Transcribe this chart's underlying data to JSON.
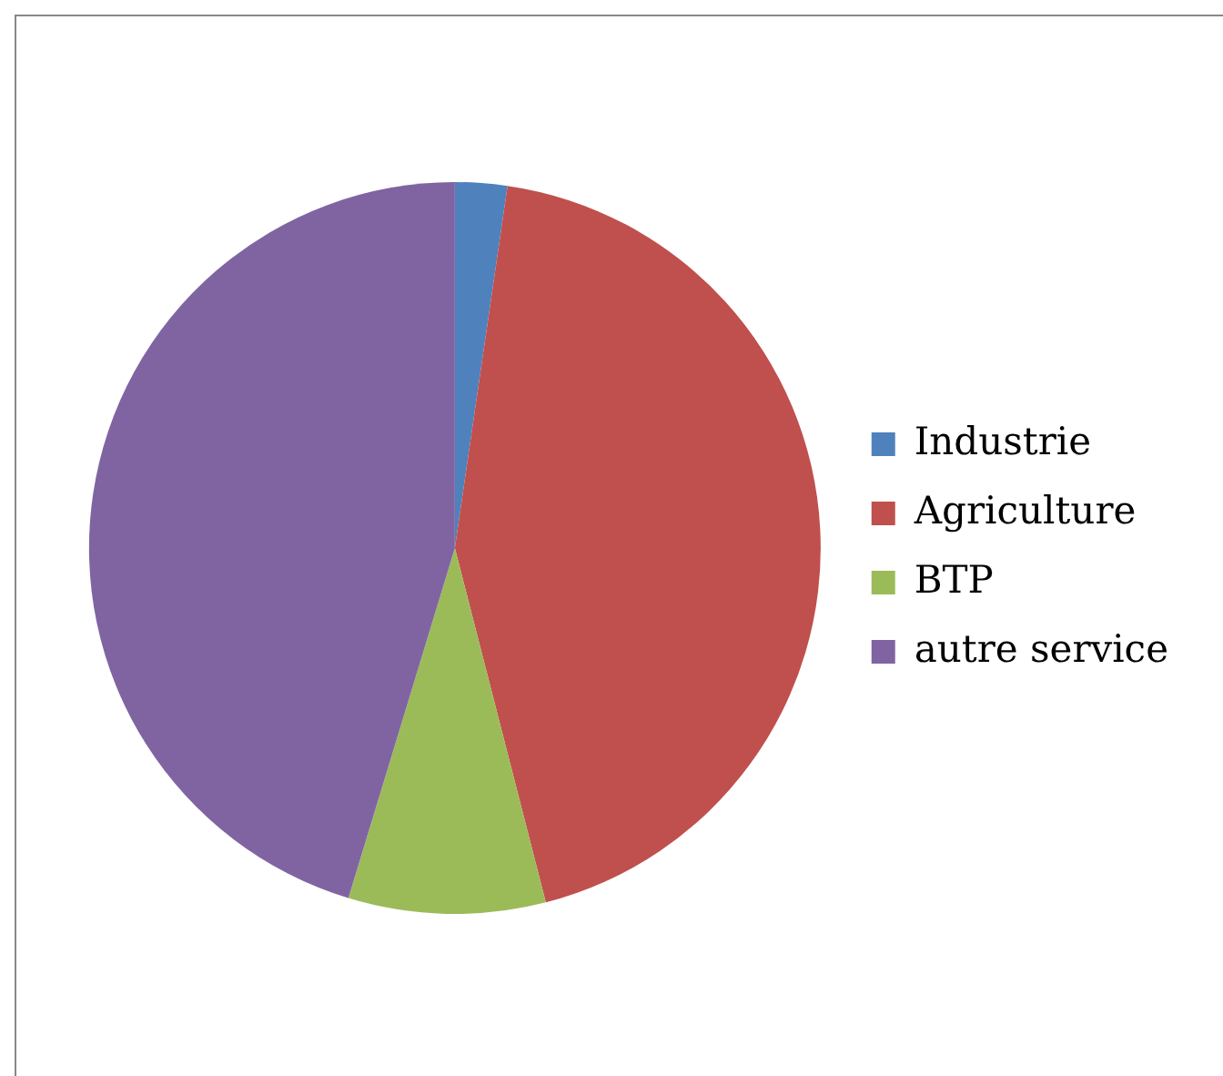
{
  "chart_data": {
    "type": "pie",
    "categories": [
      "Industrie",
      "Agriculture",
      "BTP",
      "autre service"
    ],
    "values": [
      2.3,
      43.7,
      8.7,
      45.3
    ],
    "colors": [
      "#4f81bd",
      "#c0504d",
      "#9bbb59",
      "#8064a2"
    ],
    "legend": "right"
  }
}
